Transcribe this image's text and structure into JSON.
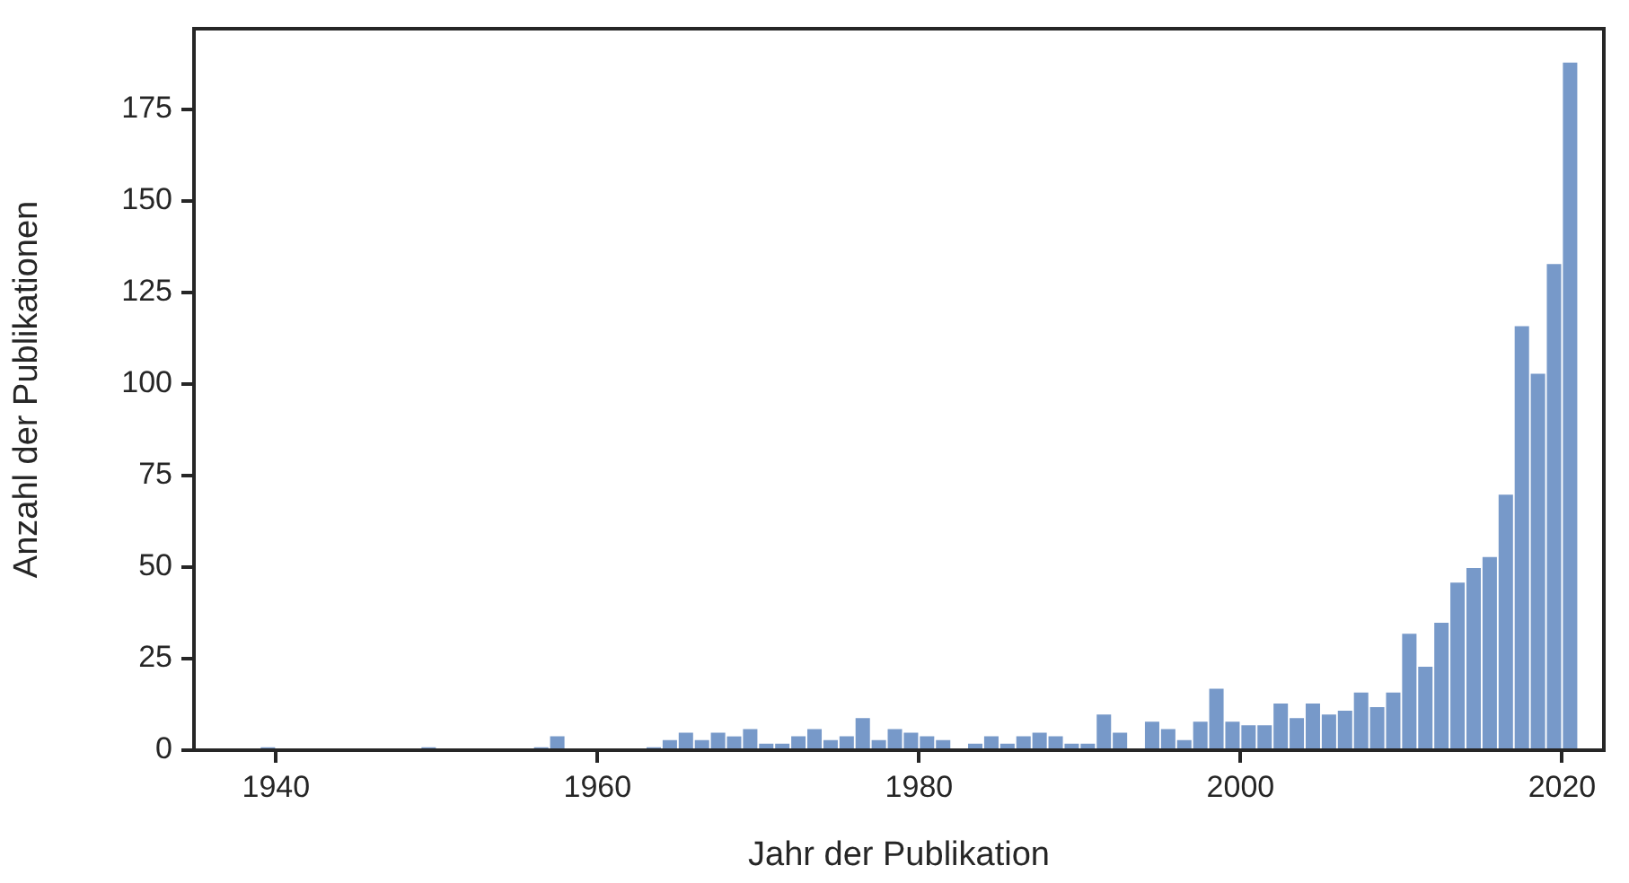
{
  "chart_data": {
    "type": "histogram",
    "xlabel": "Jahr der Publikation",
    "ylabel": "Anzahl der Publikationen",
    "bins": [
      1939,
      1940,
      1941,
      1942,
      1943,
      1944,
      1945,
      1946,
      1947,
      1948,
      1949,
      1950,
      1951,
      1952,
      1953,
      1954,
      1955,
      1956,
      1957,
      1958,
      1959,
      1960,
      1961,
      1962,
      1963,
      1964,
      1965,
      1966,
      1967,
      1968,
      1969,
      1970,
      1971,
      1972,
      1973,
      1974,
      1975,
      1976,
      1977,
      1978,
      1979,
      1980,
      1981,
      1982,
      1983,
      1984,
      1985,
      1986,
      1987,
      1988,
      1989,
      1990,
      1991,
      1992,
      1993,
      1994,
      1995,
      1996,
      1997,
      1998,
      1999,
      2000,
      2001,
      2002,
      2003,
      2004,
      2005,
      2006,
      2007,
      2008,
      2009,
      2010,
      2011,
      2012,
      2013,
      2014,
      2015,
      2016,
      2017,
      2018,
      2019,
      2020,
      2021
    ],
    "values": [
      1,
      0,
      0,
      0,
      0,
      0,
      0,
      0,
      0,
      0,
      1,
      0,
      0,
      0,
      0,
      0,
      0,
      1,
      4,
      0,
      0,
      0,
      0,
      0,
      1,
      3,
      5,
      3,
      5,
      4,
      6,
      2,
      2,
      4,
      6,
      3,
      4,
      9,
      3,
      6,
      5,
      4,
      3,
      0,
      2,
      4,
      2,
      4,
      5,
      4,
      2,
      2,
      10,
      5,
      0,
      8,
      6,
      3,
      8,
      17,
      8,
      7,
      7,
      13,
      9,
      13,
      10,
      11,
      16,
      12,
      16,
      32,
      23,
      35,
      46,
      50,
      53,
      70,
      116,
      103,
      133,
      188
    ],
    "color": "#7799c9",
    "xlim": [
      1934.9,
      2022.6
    ],
    "xticks": [
      1940,
      1960,
      1980,
      2000,
      2020
    ],
    "ylim": [
      0,
      197
    ],
    "yticks": [
      0,
      25,
      50,
      75,
      100,
      125,
      150,
      175
    ]
  }
}
